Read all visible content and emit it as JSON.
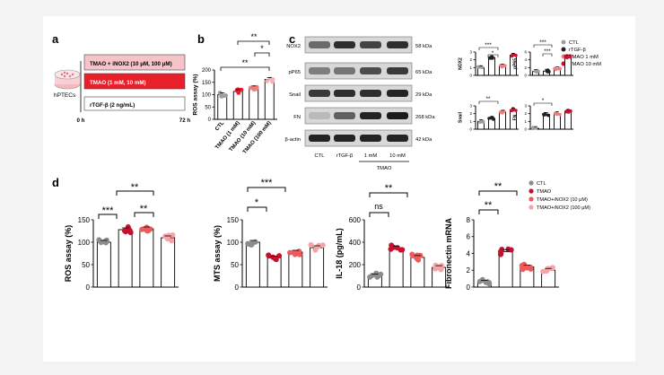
{
  "panel_a": {
    "letter": "a",
    "cells_label": "hPTECs",
    "bar1": "TMAO + iNOX2 (10 μM, 100 μM)",
    "bar2": "TMAO (1 mM, 10 mM)",
    "bar3": "rTGF-β (2 ng/mL)",
    "t_start": "0 h",
    "t_end": "72 h",
    "colors": {
      "bar1": "#f6c3c8",
      "bar2": "#e8202a",
      "bar3": "#ffffff"
    }
  },
  "panel_b": {
    "letter": "b",
    "sig_1": "**",
    "sig_2": "*",
    "sig_3": "**"
  },
  "panel_c": {
    "letter": "c",
    "blots": [
      {
        "label": "NOX2",
        "kda": "58 kDa"
      },
      {
        "label": "pP65",
        "kda": "65 kDa"
      },
      {
        "label": "Snail",
        "kda": "29 kDa"
      },
      {
        "label": "FN",
        "kda": "268 kDa"
      },
      {
        "label": "β-actin",
        "kda": "42 kDa"
      }
    ],
    "lane_labels": [
      "CTL",
      "rTGF-β",
      "1 mM",
      "10 mM"
    ],
    "group_label": "TMAO",
    "legend": [
      "CTL",
      "rTGF-β",
      "TMAO 1 mM",
      "TMAO 10 mM"
    ],
    "legend_colors": [
      "#9e9e9e",
      "#222222",
      "#f08080",
      "#c8102e"
    ],
    "sig": [
      "***",
      "*",
      "***",
      "***",
      "**",
      "*"
    ]
  },
  "panel_d": {
    "letter": "d",
    "legend": [
      "CTL",
      "TMAO",
      "TMAO+iNOX2 (10 μM)",
      "TMAO+iNOX2 (100 μM)"
    ],
    "legend_colors": [
      "#8c8c8c",
      "#c8102e",
      "#ee5a5a",
      "#f7a3a8"
    ],
    "sig_ros": [
      "***",
      "**",
      "**"
    ],
    "sig_mts": [
      "*",
      "***"
    ],
    "sig_il18": [
      "ns",
      "**"
    ],
    "sig_fn": [
      "**",
      "**"
    ]
  },
  "chart_data": [
    {
      "id": "b",
      "type": "bar",
      "ylabel": "ROS assay (%)",
      "categories": [
        "CTL",
        "TMAO (1 mM)",
        "TMAO (10 mM)",
        "TMAO (100 mM)"
      ],
      "values": [
        100,
        113,
        128,
        162
      ],
      "ylim": [
        0,
        200
      ],
      "yticks": [
        0,
        50,
        100,
        150,
        200
      ],
      "colors": [
        "#9e9e9e",
        "#e8202a",
        "#f27c7c",
        "#f6b1b5"
      ]
    },
    {
      "id": "c_nox2",
      "type": "bar",
      "ylabel": "NOX2",
      "values": [
        1.0,
        2.3,
        1.2,
        2.6
      ],
      "ylim": [
        0,
        3
      ],
      "yticks": [
        0,
        1,
        2,
        3
      ],
      "colors": [
        "#9e9e9e",
        "#222222",
        "#f08080",
        "#c8102e"
      ]
    },
    {
      "id": "c_pp65",
      "type": "bar",
      "ylabel": "pP65",
      "values": [
        1.0,
        1.1,
        1.7,
        4.8
      ],
      "ylim": [
        0,
        6
      ],
      "yticks": [
        0,
        2,
        4,
        6
      ],
      "colors": [
        "#9e9e9e",
        "#222222",
        "#f08080",
        "#c8102e"
      ]
    },
    {
      "id": "c_snail",
      "type": "bar",
      "ylabel": "Snail",
      "values": [
        1.0,
        1.4,
        2.2,
        2.5
      ],
      "ylim": [
        0,
        3
      ],
      "yticks": [
        0,
        1,
        2,
        3
      ],
      "colors": [
        "#9e9e9e",
        "#222222",
        "#f08080",
        "#c8102e"
      ]
    },
    {
      "id": "c_fn",
      "type": "bar",
      "ylabel": "FN",
      "values": [
        0.1,
        1.9,
        2.0,
        2.3
      ],
      "ylim": [
        0,
        3
      ],
      "yticks": [
        0,
        1,
        2,
        3
      ],
      "colors": [
        "#9e9e9e",
        "#222222",
        "#f08080",
        "#c8102e"
      ]
    },
    {
      "id": "d_ros",
      "type": "bar",
      "ylabel": "ROS assay (%)",
      "values": [
        100,
        128,
        130,
        110
      ],
      "ylim": [
        0,
        150
      ],
      "yticks": [
        0,
        50,
        100,
        150
      ],
      "colors": [
        "#8c8c8c",
        "#c8102e",
        "#ee5a5a",
        "#f7a3a8"
      ]
    },
    {
      "id": "d_mts",
      "type": "bar",
      "ylabel": "MTS assay (%)",
      "values": [
        100,
        65,
        78,
        88
      ],
      "ylim": [
        0,
        150
      ],
      "yticks": [
        0,
        50,
        100,
        150
      ],
      "colors": [
        "#8c8c8c",
        "#c8102e",
        "#ee5a5a",
        "#f7a3a8"
      ]
    },
    {
      "id": "d_il18",
      "type": "bar",
      "ylabel": "IL-18 (pg/mL)",
      "values": [
        100,
        350,
        265,
        175
      ],
      "ylim": [
        0,
        600
      ],
      "yticks": [
        0,
        200,
        400,
        600
      ],
      "colors": [
        "#8c8c8c",
        "#c8102e",
        "#ee5a5a",
        "#f7a3a8"
      ]
    },
    {
      "id": "d_fn",
      "type": "bar",
      "ylabel": "Fibronectin mRNA",
      "values": [
        0.6,
        4.2,
        2.4,
        2.0
      ],
      "ylim": [
        0,
        8
      ],
      "yticks": [
        0,
        2,
        4,
        6,
        8
      ],
      "colors": [
        "#8c8c8c",
        "#c8102e",
        "#ee5a5a",
        "#f7a3a8"
      ]
    }
  ]
}
